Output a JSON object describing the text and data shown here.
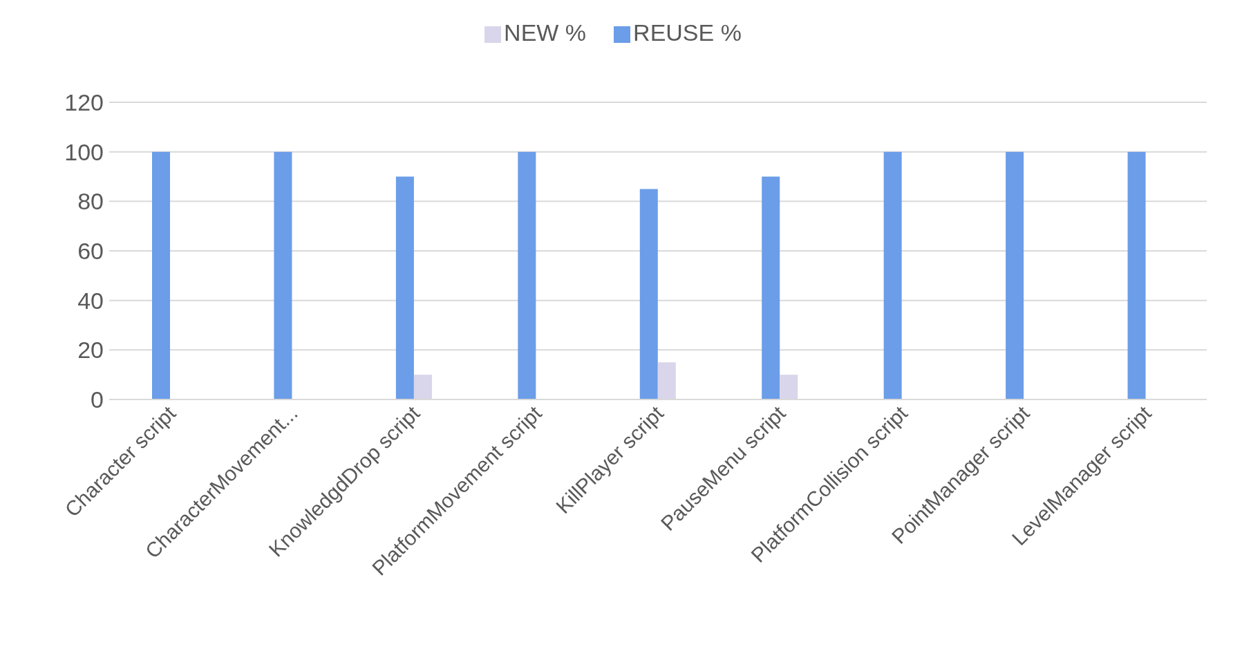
{
  "chart_data": {
    "type": "bar",
    "categories": [
      "Character script",
      "CharacterMovement...",
      "KnowledgdDrop script",
      "PlatformMovement script",
      "KillPlayer script",
      "PauseMenu script",
      "PlatformCollision script",
      "PointManager script",
      "LevelManager script"
    ],
    "series": [
      {
        "name": "REUSE %",
        "color": "#6b9de8",
        "values": [
          100,
          100,
          90,
          100,
          85,
          90,
          100,
          100,
          100
        ]
      },
      {
        "name": "NEW %",
        "color": "#d9d5ea",
        "values": [
          0,
          0,
          10,
          0,
          15,
          10,
          0,
          0,
          0
        ]
      }
    ],
    "ylim": [
      0,
      120
    ],
    "yticks": [
      0,
      20,
      40,
      60,
      80,
      100,
      120
    ],
    "grid": "y",
    "legend": "top"
  }
}
